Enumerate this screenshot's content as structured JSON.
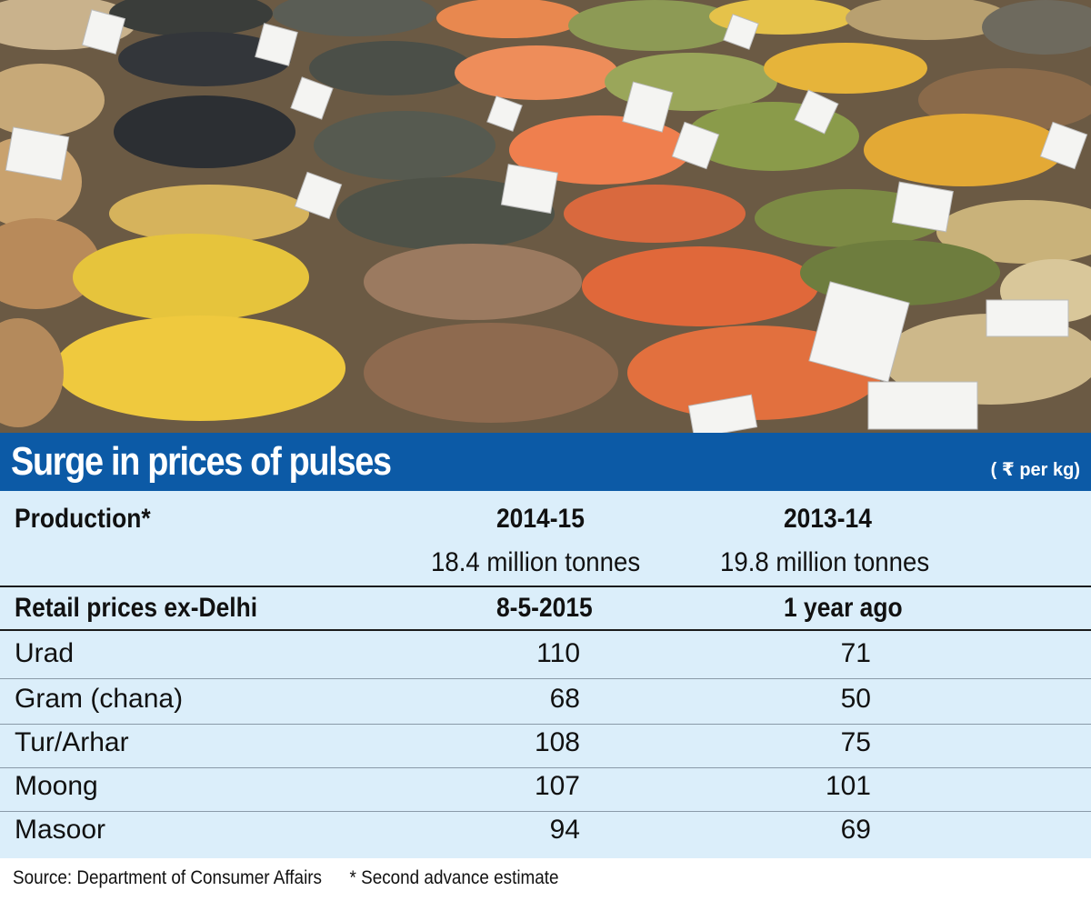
{
  "title": "Surge in prices of pulses",
  "unit": "( ₹ per kg)",
  "production": {
    "label": "Production*",
    "years": [
      "2014-15",
      "2013-14"
    ],
    "values": [
      "18.4 million tonnes",
      "19.8 million tonnes"
    ]
  },
  "retail": {
    "label": "Retail prices ex-Delhi",
    "columns": [
      "8-5-2015",
      "1 year ago"
    ]
  },
  "rows": [
    {
      "name": "Urad",
      "current": "110",
      "prev": "71"
    },
    {
      "name": "Gram (chana)",
      "current": "68",
      "prev": "50"
    },
    {
      "name": "Tur/Arhar",
      "current": "108",
      "prev": "75"
    },
    {
      "name": "Moong",
      "current": "107",
      "prev": "101"
    },
    {
      "name": "Masoor",
      "current": "94",
      "prev": "69"
    }
  ],
  "footer": {
    "source": "Source: Department of Consumer Affairs",
    "note": "* Second advance estimate"
  },
  "colors": {
    "banner": "#0c5aa6",
    "table_bg": "#dbeefa"
  }
}
